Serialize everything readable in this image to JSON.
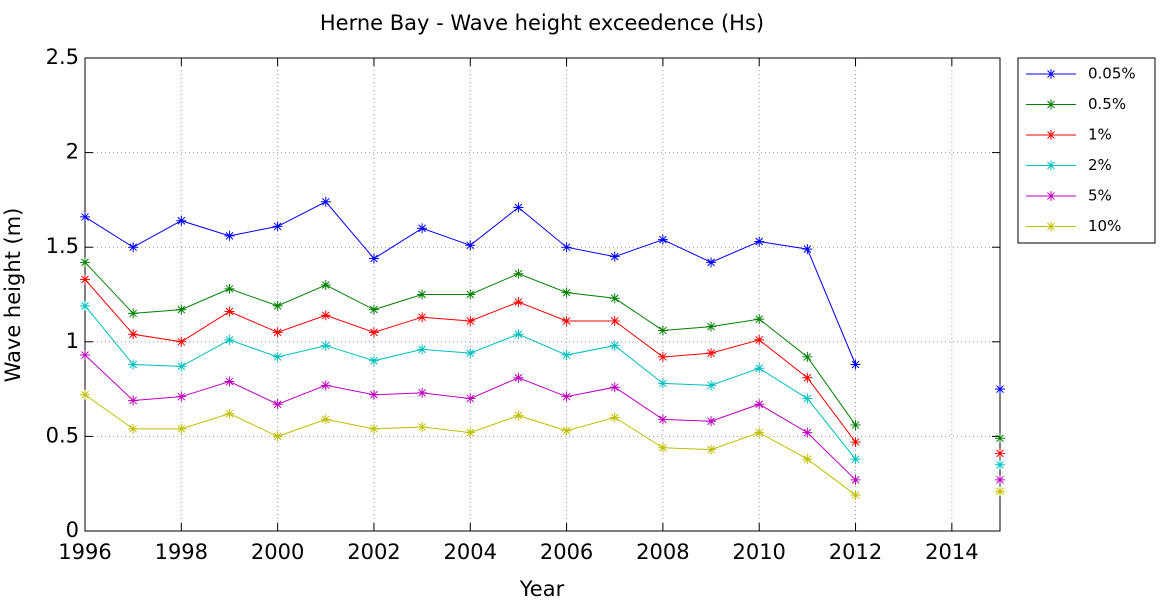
{
  "chart_data": {
    "type": "line",
    "title": "Herne Bay - Wave height exceedence (Hs)",
    "xlabel": "Year",
    "ylabel": "Wave height (m)",
    "x": [
      1996,
      1997,
      1998,
      1999,
      2000,
      2001,
      2002,
      2003,
      2004,
      2005,
      2006,
      2007,
      2008,
      2009,
      2010,
      2011,
      2012,
      2013,
      2014,
      2015
    ],
    "xlim": [
      1996,
      2015
    ],
    "xticks": [
      1996,
      1998,
      2000,
      2002,
      2004,
      2006,
      2008,
      2010,
      2012,
      2014
    ],
    "ylim": [
      0,
      2.5
    ],
    "yticks": [
      0,
      0.5,
      1,
      1.5,
      2,
      2.5
    ],
    "grid": true,
    "legend": "northeastoutside",
    "marker": "asterisk",
    "series": [
      {
        "name": "0.05%",
        "color": "#0000ff",
        "values": [
          1.66,
          1.5,
          1.64,
          1.56,
          1.61,
          1.74,
          1.44,
          1.6,
          1.51,
          1.71,
          1.5,
          1.45,
          1.54,
          1.42,
          1.53,
          1.49,
          0.88,
          null,
          null,
          0.75
        ]
      },
      {
        "name": "0.5%",
        "color": "#008000",
        "values": [
          1.42,
          1.15,
          1.17,
          1.28,
          1.19,
          1.3,
          1.17,
          1.25,
          1.25,
          1.36,
          1.26,
          1.23,
          1.06,
          1.08,
          1.12,
          0.92,
          0.56,
          null,
          null,
          0.49
        ]
      },
      {
        "name": "1%",
        "color": "#ff0000",
        "values": [
          1.33,
          1.04,
          1.0,
          1.16,
          1.05,
          1.14,
          1.05,
          1.13,
          1.11,
          1.21,
          1.11,
          1.11,
          0.92,
          0.94,
          1.01,
          0.81,
          0.47,
          null,
          null,
          0.41
        ]
      },
      {
        "name": "2%",
        "color": "#00bfbf",
        "values": [
          1.19,
          0.88,
          0.87,
          1.01,
          0.92,
          0.98,
          0.9,
          0.96,
          0.94,
          1.04,
          0.93,
          0.98,
          0.78,
          0.77,
          0.86,
          0.7,
          0.38,
          null,
          null,
          0.35
        ]
      },
      {
        "name": "5%",
        "color": "#bf00bf",
        "values": [
          0.93,
          0.69,
          0.71,
          0.79,
          0.67,
          0.77,
          0.72,
          0.73,
          0.7,
          0.81,
          0.71,
          0.76,
          0.59,
          0.58,
          0.67,
          0.52,
          0.27,
          null,
          null,
          0.27
        ]
      },
      {
        "name": "10%",
        "color": "#bfbf00",
        "values": [
          0.72,
          0.54,
          0.54,
          0.62,
          0.5,
          0.59,
          0.54,
          0.55,
          0.52,
          0.61,
          0.53,
          0.6,
          0.44,
          0.43,
          0.52,
          0.38,
          0.19,
          null,
          null,
          0.21
        ]
      }
    ]
  }
}
